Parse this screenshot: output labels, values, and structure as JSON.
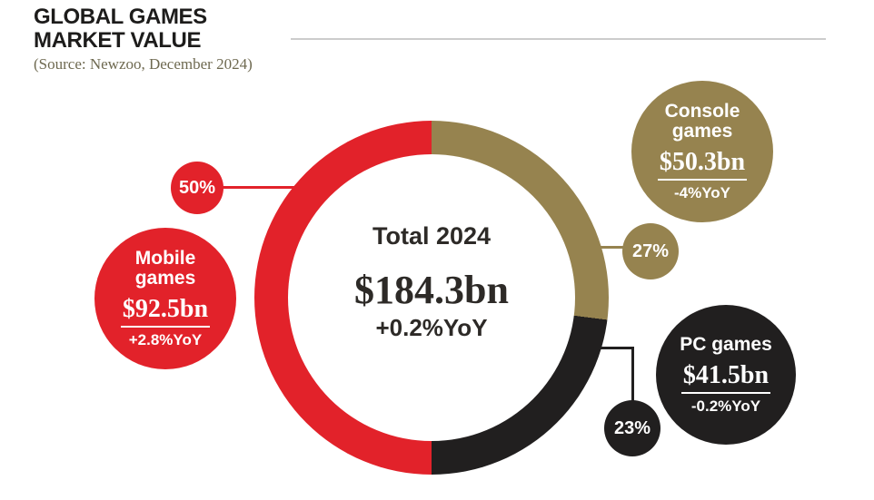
{
  "header": {
    "title_line1": "GLOBAL GAMES",
    "title_line2": "MARKET VALUE",
    "source": "(Source: Newzoo, December 2024)"
  },
  "donut_center": {
    "label": "Total 2024",
    "value": "$184.3bn",
    "yoy": "+0.2%YoY"
  },
  "bubbles": {
    "mobile": {
      "name": "Mobile games",
      "value": "$92.5bn",
      "yoy": "+2.8%YoY",
      "percent": "50%"
    },
    "console": {
      "name": "Console games",
      "value": "$50.3bn",
      "yoy": "-4%YoY",
      "percent": "27%"
    },
    "pc": {
      "name": "PC games",
      "value": "$41.5bn",
      "yoy": "-0.2%YoY",
      "percent": "23%"
    }
  },
  "colors": {
    "mobile_red": "#e2222a",
    "console_gold": "#96834f",
    "pc_black": "#211f1f",
    "title_text": "#1d1c1b",
    "source_text": "#6e6950",
    "center_text": "#2d2a27",
    "header_rule": "#cccccc",
    "background": "#ffffff"
  },
  "chart_data": {
    "type": "pie",
    "subtype": "donut",
    "title": "GLOBAL GAMES MARKET VALUE",
    "source": "(Source: Newzoo, December 2024)",
    "center": {
      "label": "Total 2024",
      "total_bn": 184.3,
      "yoy_pct": 0.2,
      "display_value": "$184.3bn",
      "display_yoy": "+0.2%YoY"
    },
    "start_angle_deg": 0,
    "direction": "clockwise",
    "legend_position": "none",
    "hole_color": "#ffffff",
    "segments": [
      {
        "name": "Console games",
        "percent": 27,
        "value_bn": 50.3,
        "yoy_pct": -4,
        "display_value": "$50.3bn",
        "display_yoy": "-4%YoY",
        "color": "#96834f"
      },
      {
        "name": "PC games",
        "percent": 23,
        "value_bn": 41.5,
        "yoy_pct": -0.2,
        "display_value": "$41.5bn",
        "display_yoy": "-0.2%YoY",
        "color": "#211f1f"
      },
      {
        "name": "Mobile games",
        "percent": 50,
        "value_bn": 92.5,
        "yoy_pct": 2.8,
        "display_value": "$92.5bn",
        "display_yoy": "+2.8%YoY",
        "color": "#e2222a"
      }
    ]
  }
}
